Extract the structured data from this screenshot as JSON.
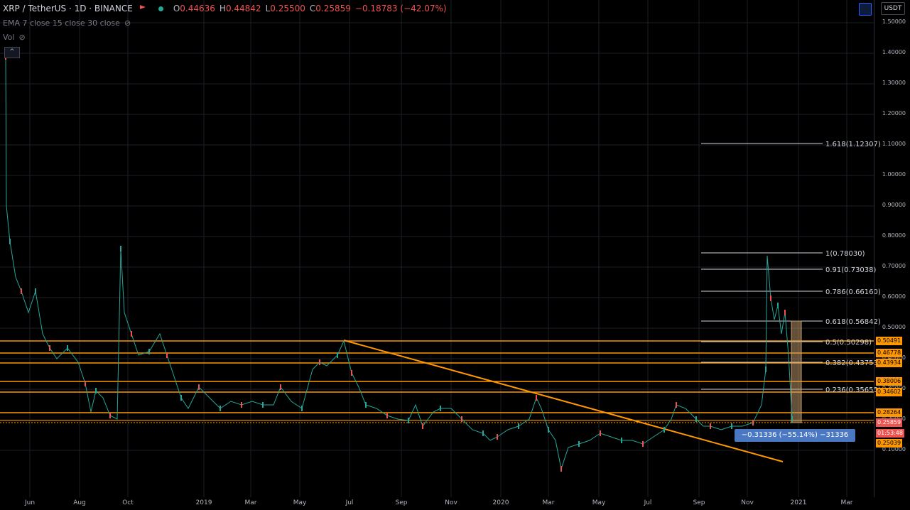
{
  "legend": {
    "symbol": "XRP / TetherUS · 1D · BINANCE",
    "o_label": "O",
    "o_value": "0.44636",
    "h_label": "H",
    "h_value": "0.44842",
    "l_label": "L",
    "l_value": "0.25500",
    "c_label": "C",
    "c_value": "0.25859",
    "change": "−0.18783 (−42.07%)",
    "ema": "EMA 7 close 15 close 30 close",
    "vol": "Vol"
  },
  "collapse_label": "^",
  "currency_button": "USDT",
  "price_ticks": [
    "1.50000",
    "1.40000",
    "1.30000",
    "1.20000",
    "1.10000",
    "1.00000",
    "0.90000",
    "0.80000",
    "0.70000",
    "0.60000",
    "0.50000",
    "0.40000",
    "0.30000",
    "0.20000",
    "0.10000"
  ],
  "price_tags": [
    {
      "label": "0.50491",
      "color": "#ff9800"
    },
    {
      "label": "0.46778",
      "color": "#ff9800"
    },
    {
      "label": "0.43934",
      "color": "#ff9800"
    },
    {
      "label": "0.38006",
      "color": "#ff9800"
    },
    {
      "label": "0.34602",
      "color": "#ff9800"
    },
    {
      "label": "0.28264",
      "color": "#ff9800"
    },
    {
      "label": "0.25859",
      "color": "#ef5350"
    },
    {
      "label": "01:53:48",
      "color": "#ef5350"
    },
    {
      "label": "0.25039",
      "color": "#ff9800"
    }
  ],
  "time_labels": [
    "Jun",
    "Aug",
    "Oct",
    "2019",
    "Mar",
    "May",
    "Jul",
    "Sep",
    "Nov",
    "2020",
    "Mar",
    "May",
    "Jul",
    "Sep",
    "Nov",
    "2021",
    "Mar"
  ],
  "fib_levels": [
    {
      "label": "1.618(1.12307)"
    },
    {
      "label": "1(0.78030)"
    },
    {
      "label": "0.91(0.73038)"
    },
    {
      "label": "0.786(0.66160)"
    },
    {
      "label": "0.618(0.56842)"
    },
    {
      "label": "0.5(0.50298)"
    },
    {
      "label": "0.382(0.43753)"
    },
    {
      "label": "0.236(0.35655)"
    }
  ],
  "measure_label": "−0.31336 (−55.14%) −31336",
  "colors": {
    "up": "#26a69a",
    "down": "#ef5350",
    "orange": "#ff9800",
    "fib": "#ffffff",
    "background": "#000000"
  }
}
